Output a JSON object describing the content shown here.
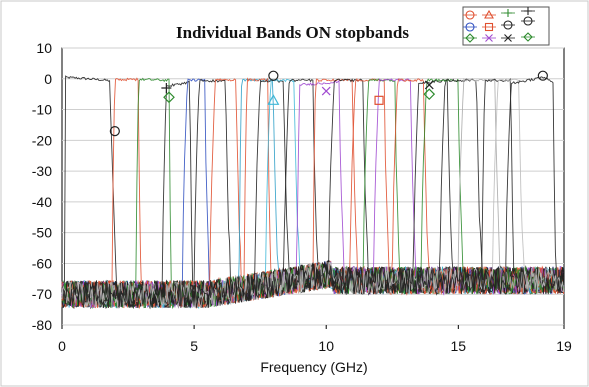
{
  "chart_data": {
    "type": "line",
    "title": "Individual Bands ON  stopbands",
    "xlabel": "Frequency (GHz)",
    "ylabel": "",
    "xlim": [
      0,
      19
    ],
    "ylim": [
      -80,
      10
    ],
    "x_ticks": [
      0,
      5,
      10,
      15,
      19
    ],
    "y_ticks": [
      10,
      0,
      -10,
      -20,
      -30,
      -40,
      -50,
      -60,
      -70,
      -80
    ],
    "grid": "horizontal",
    "legend_position": "top-right",
    "stopband_floor_db": -70,
    "series": [
      {
        "color": "#222222",
        "marker": "circle",
        "start": 0.1,
        "end": 2.05,
        "values": [
          [
            0.1,
            0.5
          ],
          [
            1.0,
            0.0
          ],
          [
            1.8,
            -0.6
          ],
          [
            2.05,
            -65
          ]
        ],
        "marker_points": [
          [
            2.0,
            -17
          ]
        ]
      },
      {
        "color": "#e05030",
        "marker": "plus",
        "start": 1.9,
        "end": 3.0,
        "values": [
          [
            2.0,
            -0.3
          ],
          [
            2.9,
            -0.2
          ]
        ],
        "marker_points": []
      },
      {
        "color": "#2e8b2e",
        "marker": "diamond",
        "start": 2.8,
        "end": 4.15,
        "values": [
          [
            2.9,
            -0.2
          ],
          [
            4.05,
            -0.5
          ]
        ],
        "marker_points": [
          [
            4.05,
            -6
          ]
        ]
      },
      {
        "color": "#222222",
        "marker": "plus",
        "start": 3.8,
        "end": 4.95,
        "values": [
          [
            3.95,
            -2.5
          ],
          [
            4.85,
            -1.0
          ]
        ],
        "marker_points": [
          [
            3.95,
            -3
          ]
        ]
      },
      {
        "color": "#3050c0",
        "marker": "none",
        "start": 4.55,
        "end": 5.6,
        "values": [
          [
            4.75,
            -0.5
          ],
          [
            5.4,
            -0.3
          ]
        ],
        "marker_points": []
      },
      {
        "color": "#222222",
        "marker": "none",
        "start": 5.0,
        "end": 6.4,
        "values": [
          [
            5.2,
            -0.5
          ],
          [
            6.2,
            -0.8
          ]
        ],
        "marker_points": []
      },
      {
        "color": "#e05030",
        "marker": "none",
        "start": 5.6,
        "end": 6.8,
        "values": [
          [
            5.8,
            -0.2
          ],
          [
            6.6,
            -0.4
          ]
        ],
        "marker_points": []
      },
      {
        "color": "#30a0c8",
        "marker": "none",
        "start": 6.7,
        "end": 8.2,
        "values": [
          [
            6.8,
            -0.5
          ],
          [
            8.0,
            -0.5
          ]
        ],
        "marker_points": []
      },
      {
        "color": "#e05030",
        "marker": "none",
        "start": 6.9,
        "end": 7.9,
        "values": [
          [
            7.0,
            -0.3
          ],
          [
            7.8,
            -0.3
          ]
        ],
        "marker_points": []
      },
      {
        "color": "#222222",
        "marker": "circle",
        "start": 7.3,
        "end": 8.6,
        "values": [
          [
            7.5,
            -0.8
          ],
          [
            8.4,
            -0.6
          ]
        ],
        "marker_points": [
          [
            8.0,
            1.0
          ]
        ]
      },
      {
        "color": "#40b8d8",
        "marker": "triangle",
        "start": 7.7,
        "end": 9.0,
        "values": [
          [
            7.9,
            -0.5
          ],
          [
            8.8,
            -0.5
          ]
        ],
        "marker_points": [
          [
            8.0,
            -7
          ]
        ]
      },
      {
        "color": "#222222",
        "marker": "none",
        "start": 8.4,
        "end": 9.7,
        "values": [
          [
            8.6,
            -0.5
          ],
          [
            9.5,
            -0.5
          ]
        ],
        "marker_points": []
      },
      {
        "color": "#a04ad0",
        "marker": "x",
        "start": 8.9,
        "end": 10.7,
        "values": [
          [
            9.0,
            -2.0
          ],
          [
            10.5,
            -1.0
          ]
        ],
        "marker_points": [
          [
            10.0,
            -4
          ]
        ]
      },
      {
        "color": "#e05030",
        "marker": "none",
        "start": 9.5,
        "end": 11.2,
        "values": [
          [
            9.6,
            -0.5
          ],
          [
            11.0,
            -0.5
          ]
        ],
        "marker_points": []
      },
      {
        "color": "#222222",
        "marker": "none",
        "start": 10.1,
        "end": 11.6,
        "values": [
          [
            10.3,
            -0.5
          ],
          [
            11.4,
            -0.5
          ]
        ],
        "marker_points": []
      },
      {
        "color": "#e05030",
        "marker": "square",
        "start": 10.9,
        "end": 12.4,
        "values": [
          [
            11.1,
            -0.5
          ],
          [
            12.2,
            -0.4
          ]
        ],
        "marker_points": [
          [
            12.0,
            -7
          ]
        ]
      },
      {
        "color": "#2e8b2e",
        "marker": "none",
        "start": 11.4,
        "end": 12.8,
        "values": [
          [
            11.6,
            -0.4
          ],
          [
            12.6,
            -0.5
          ]
        ],
        "marker_points": []
      },
      {
        "color": "#a04ad0",
        "marker": "none",
        "start": 11.8,
        "end": 13.4,
        "values": [
          [
            12.0,
            -0.5
          ],
          [
            13.2,
            -0.4
          ]
        ],
        "marker_points": []
      },
      {
        "color": "#e05030",
        "marker": "none",
        "start": 12.5,
        "end": 13.9,
        "values": [
          [
            12.7,
            -0.5
          ],
          [
            13.7,
            -0.4
          ]
        ],
        "marker_points": []
      },
      {
        "color": "#222222",
        "marker": "x",
        "start": 13.3,
        "end": 14.8,
        "values": [
          [
            13.5,
            -1.5
          ],
          [
            14.6,
            -0.5
          ]
        ],
        "marker_points": [
          [
            13.9,
            -2
          ]
        ]
      },
      {
        "color": "#2e8b2e",
        "marker": "diamond",
        "start": 13.6,
        "end": 15.2,
        "values": [
          [
            13.8,
            -0.5
          ],
          [
            15.0,
            -0.5
          ]
        ],
        "marker_points": [
          [
            13.9,
            -5
          ]
        ]
      },
      {
        "color": "#222222",
        "marker": "none",
        "start": 14.3,
        "end": 15.9,
        "values": [
          [
            14.5,
            -0.5
          ],
          [
            15.7,
            -0.5
          ]
        ],
        "marker_points": []
      },
      {
        "color": "#aaaaaa",
        "marker": "none",
        "start": 15.0,
        "end": 16.6,
        "values": [
          [
            15.2,
            -0.5
          ],
          [
            16.4,
            -0.5
          ]
        ],
        "marker_points": []
      },
      {
        "color": "#222222",
        "marker": "none",
        "start": 15.9,
        "end": 17.1,
        "values": [
          [
            16.0,
            -0.5
          ],
          [
            17.0,
            -0.5
          ]
        ],
        "marker_points": []
      },
      {
        "color": "#bbbbbb",
        "marker": "none",
        "start": 16.3,
        "end": 17.5,
        "values": [
          [
            16.5,
            -0.5
          ],
          [
            17.3,
            -0.5
          ]
        ],
        "marker_points": []
      },
      {
        "color": "#222222",
        "marker": "circle",
        "start": 16.8,
        "end": 18.7,
        "values": [
          [
            17.0,
            -1.5
          ],
          [
            18.2,
            0.5
          ],
          [
            18.6,
            -1.0
          ]
        ],
        "marker_points": [
          [
            18.2,
            1.0
          ]
        ]
      }
    ]
  }
}
